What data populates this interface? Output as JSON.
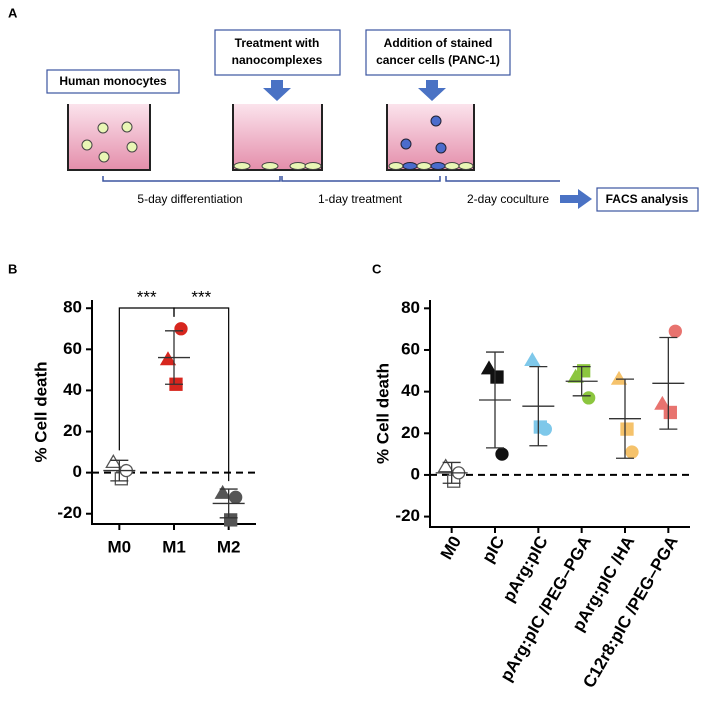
{
  "panel_a": {
    "label": "A",
    "box_monocytes": "Human monocytes",
    "box_treatment": [
      "Treatment with",
      "nanocomplexes"
    ],
    "box_addition": [
      "Addition of stained",
      "cancer cells (PANC-1)"
    ],
    "step_1": "5-day differentiation",
    "step_2": "1-day treatment",
    "step_3": "2-day coculture",
    "box_facs": "FACS analysis"
  },
  "chart_data": [
    {
      "type": "dot",
      "label": "B",
      "ylabel": "% Cell death",
      "categories": [
        "M0",
        "M1",
        "M2"
      ],
      "markers": [
        "triangle",
        "square",
        "circle"
      ],
      "groups": [
        {
          "color": "#ffffff",
          "values": [
            5,
            -3,
            1
          ],
          "mean": 1,
          "sd": 5
        },
        {
          "color": "#d7261e",
          "values": [
            55,
            43,
            70
          ],
          "mean": 56,
          "sd": 13
        },
        {
          "color": "#555555",
          "values": [
            -10,
            -23,
            -12
          ],
          "mean": -15,
          "sd": 7
        }
      ],
      "significance": [
        "***",
        "***"
      ],
      "ylim": [
        -25,
        84
      ],
      "yticks": [
        -20,
        0,
        20,
        40,
        60,
        80
      ],
      "zero_line": true
    },
    {
      "type": "dot",
      "label": "C",
      "ylabel": "% Cell death",
      "categories": [
        "M0",
        "pIC",
        "pArg:pIC",
        "pArg:pIC /PEG–PGA",
        "pArg:pIC /HA",
        "C12r8:pIC /PEG–PGA"
      ],
      "markers": [
        "triangle",
        "square",
        "circle"
      ],
      "groups": [
        {
          "color": "#ffffff",
          "values": [
            4,
            -3,
            1
          ],
          "mean": 1,
          "sd": 5
        },
        {
          "color": "#111111",
          "values": [
            51,
            47,
            10
          ],
          "mean": 36,
          "sd": 23
        },
        {
          "color": "#7ec8ea",
          "values": [
            55,
            23,
            22
          ],
          "mean": 33,
          "sd": 19
        },
        {
          "color": "#8cc63f",
          "values": [
            47,
            50,
            37
          ],
          "mean": 45,
          "sd": 7
        },
        {
          "color": "#f5c26b",
          "values": [
            46,
            22,
            11
          ],
          "mean": 27,
          "sd": 19
        },
        {
          "color": "#e8736f",
          "values": [
            34,
            30,
            69
          ],
          "mean": 44,
          "sd": 22
        }
      ],
      "ylim": [
        -25,
        84
      ],
      "yticks": [
        -20,
        0,
        20,
        40,
        60,
        80
      ],
      "zero_line": true
    }
  ]
}
